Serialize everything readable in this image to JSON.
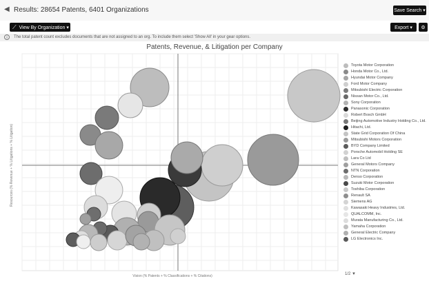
{
  "header": {
    "back_glyph": "◀",
    "results": "Results: 28654 Patents, 6401 Organizations",
    "save_search": "Save Search ▾"
  },
  "toolbar": {
    "view_by": "View By Organization ▾",
    "export": "Export ▾",
    "gear_icon": "gear-icon"
  },
  "notice": "The total patent count excludes documents that are not assigned to an org. To include them select 'Show All' in your gear options.",
  "chart_data": {
    "type": "bubble",
    "title": "Patents, Revenue, & Litigation per Company",
    "xlabel": "Vision (% Patents + % Classifications + % Citations)",
    "ylabel": "Resources (% Revenue + % Litigations + % Litigation)",
    "grid": true,
    "legend": "right",
    "series": [
      {
        "name": "Toyota Motor Corporation",
        "color": "#bdbdbd"
      },
      {
        "name": "Honda Motor Co., Ltd.",
        "color": "#8a8a8a"
      },
      {
        "name": "Hyundai Motor Company",
        "color": "#a6a6a6"
      },
      {
        "name": "Ford Motor Company",
        "color": "#cfcfcf"
      },
      {
        "name": "Mitsubishi Electric Corporation",
        "color": "#7d7d7d"
      },
      {
        "name": "Nissan Motor Co., Ltd.",
        "color": "#696969"
      },
      {
        "name": "Sony Corporation",
        "color": "#b3b3b3"
      },
      {
        "name": "Panasonic Corporation",
        "color": "#2e2e2e"
      },
      {
        "name": "Robert Bosch GmbH",
        "color": "#d9d9d9"
      },
      {
        "name": "Beijing Automotive Industry Holding Co., Ltd.",
        "color": "#777777"
      },
      {
        "name": "Hitachi, Ltd.",
        "color": "#1f1f1f"
      },
      {
        "name": "State Grid Corporation Of China",
        "color": "#c4c4c4"
      },
      {
        "name": "Mitsubishi Motors Corporation",
        "color": "#9a9a9a"
      },
      {
        "name": "BYD Company Limited",
        "color": "#5c5c5c"
      },
      {
        "name": "Porsche Automobil Holding SE",
        "color": "#d2d2d2"
      },
      {
        "name": "Lara Co Ltd",
        "color": "#bfbfbf"
      },
      {
        "name": "General Motors Company",
        "color": "#a0a0a0"
      },
      {
        "name": "NTN Corporation",
        "color": "#6e6e6e"
      },
      {
        "name": "Denso Corporation",
        "color": "#b8b8b8"
      },
      {
        "name": "Suzuki Motor Corporation",
        "color": "#4a4a4a"
      },
      {
        "name": "Toshiba Corporation",
        "color": "#c9c9c9"
      },
      {
        "name": "Renault SA",
        "color": "#8f8f8f"
      },
      {
        "name": "Siemens AG",
        "color": "#d4d4d4"
      },
      {
        "name": "Kawasaki Heavy Industries, Ltd.",
        "color": "#e0e0e0"
      },
      {
        "name": "QUALCOMM, Inc.",
        "color": "#e6e6e6"
      },
      {
        "name": "Murata Manufacturing Co., Ltd.",
        "color": "#dddddd"
      },
      {
        "name": "Yamaha Corporation",
        "color": "#c0c0c0"
      },
      {
        "name": "General Electric Company",
        "color": "#b0b0b0"
      },
      {
        "name": "LG Electronics Inc.",
        "color": "#5a5a5a"
      }
    ]
  },
  "pager": "1/2 ▼"
}
